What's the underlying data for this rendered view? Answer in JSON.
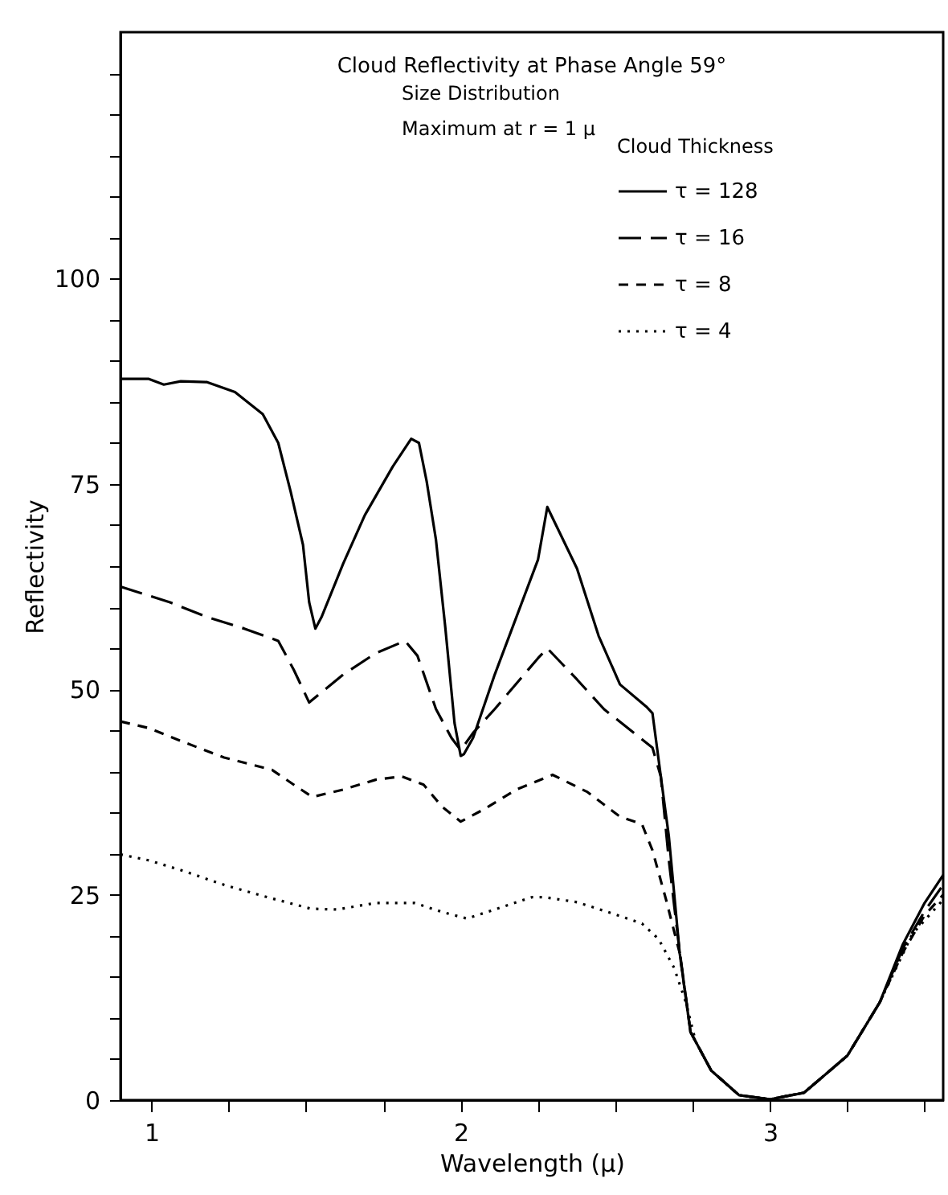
{
  "chart_data": {
    "type": "line",
    "title": "Cloud Reflectivity at Phase Angle 59°",
    "xlabel": "Wavelength (μ)",
    "ylabel": "Reflectivity",
    "legend_title": "Cloud Thickness",
    "annotations": [
      "Size Distribution",
      "Maximum at r = 1 μ"
    ],
    "xlim": [
      0.9,
      3.56
    ],
    "ylim": [
      0,
      130
    ],
    "xticks": [
      1,
      {
        "value": 1.25,
        "label": null
      },
      {
        "value": 1.5,
        "label": null
      },
      {
        "value": 1.75,
        "label": null
      },
      2,
      {
        "value": 2.25,
        "label": null
      },
      {
        "value": 2.5,
        "label": null
      },
      {
        "value": 2.75,
        "label": null
      },
      3,
      {
        "value": 3.25,
        "label": null
      },
      {
        "value": 3.5,
        "label": null
      }
    ],
    "yticks": [
      0,
      {
        "value": 5,
        "label": null
      },
      {
        "value": 10,
        "label": null
      },
      {
        "value": 15,
        "label": null
      },
      {
        "value": 20,
        "label": null
      },
      25,
      {
        "value": 30,
        "label": null
      },
      {
        "value": 35,
        "label": null
      },
      {
        "value": 40,
        "label": null
      },
      {
        "value": 45,
        "label": null
      },
      50,
      {
        "value": 55,
        "label": null
      },
      {
        "value": 60,
        "label": null
      },
      {
        "value": 65,
        "label": null
      },
      {
        "value": 70,
        "label": null
      },
      75,
      {
        "value": 80,
        "label": null
      },
      {
        "value": 85,
        "label": null
      },
      {
        "value": 90,
        "label": null
      },
      {
        "value": 95,
        "label": null
      },
      100,
      {
        "value": 105,
        "label": null
      },
      {
        "value": 110,
        "label": null
      },
      {
        "value": 115,
        "label": null
      },
      {
        "value": 120,
        "label": null
      },
      {
        "value": 125,
        "label": null
      }
    ],
    "grid": false,
    "legend": "top right",
    "marker": "none",
    "series": [
      {
        "name": "τ = 128",
        "color": "#000000",
        "line_style": "solid",
        "x": [
          0.9,
          0.99,
          1.04,
          1.095,
          1.18,
          1.27,
          1.36,
          1.41,
          1.45,
          1.49,
          1.51,
          1.53,
          1.55,
          1.62,
          1.69,
          1.78,
          1.84,
          1.865,
          1.89,
          1.92,
          1.95,
          1.98,
          2.0,
          2.01,
          2.04,
          2.11,
          2.18,
          2.25,
          2.28,
          2.376,
          2.446,
          2.515,
          2.6,
          2.62,
          2.647,
          2.673,
          2.708,
          2.743,
          2.81,
          2.9,
          3.0,
          3.11,
          3.25,
          3.355,
          3.43,
          3.5,
          3.56
        ],
        "values": [
          87.8,
          87.8,
          87.1,
          87.5,
          87.4,
          86.2,
          83.5,
          80,
          74.1,
          67.6,
          60.6,
          57.4,
          58.8,
          65.3,
          71.2,
          77.1,
          80.5,
          80,
          75.3,
          68.2,
          57.6,
          45.9,
          41.9,
          42.1,
          44.1,
          51.8,
          58.8,
          65.8,
          72.2,
          64.7,
          56.5,
          50.6,
          47.9,
          47.1,
          39.4,
          32.1,
          17.9,
          8.3,
          3.6,
          0.6,
          0.1,
          0.9,
          5.4,
          11.9,
          19,
          24,
          27.4
        ]
      },
      {
        "name": "τ = 16",
        "color": "#000000",
        "line_style": "longdash",
        "x": [
          0.9,
          1.06,
          1.18,
          1.3,
          1.41,
          1.46,
          1.51,
          1.62,
          1.725,
          1.82,
          1.86,
          1.92,
          1.97,
          2.0,
          2.04,
          2.11,
          2.25,
          2.28,
          2.376,
          2.463,
          2.57,
          2.62,
          2.647,
          2.673,
          2.705,
          2.743,
          2.81,
          2.9,
          3.0,
          3.11,
          3.25,
          3.355,
          3.43,
          3.5,
          3.56
        ],
        "values": [
          62.5,
          60.6,
          58.8,
          57.4,
          55.9,
          52.4,
          48.4,
          51.8,
          54.4,
          55.9,
          54.1,
          47.6,
          44.1,
          42.6,
          44.7,
          47.6,
          53.8,
          55,
          51.2,
          47.6,
          44.4,
          42.9,
          39.4,
          29.2,
          19,
          8.3,
          3.6,
          0.6,
          0.1,
          0.9,
          5.4,
          11.9,
          18.5,
          23,
          26.2
        ]
      },
      {
        "name": "τ = 8",
        "color": "#000000",
        "line_style": "dashed",
        "x": [
          0.9,
          0.99,
          1.11,
          1.235,
          1.39,
          1.46,
          1.52,
          1.62,
          1.725,
          1.81,
          1.88,
          1.94,
          2.0,
          2.075,
          2.18,
          2.297,
          2.41,
          2.515,
          2.586,
          2.62,
          2.664,
          2.708,
          2.743,
          2.81,
          2.9,
          3.0,
          3.11,
          3.25,
          3.355,
          3.43,
          3.5,
          3.56
        ],
        "values": [
          46.1,
          45.3,
          43.5,
          41.7,
          40.2,
          38.4,
          36.9,
          37.8,
          39,
          39.4,
          38.4,
          35.7,
          33.9,
          35.4,
          37.8,
          39.6,
          37.5,
          34.5,
          33.6,
          30.4,
          24.4,
          17.9,
          8.3,
          3.6,
          0.6,
          0.1,
          0.9,
          5.4,
          11.9,
          18,
          22.5,
          25
        ]
      },
      {
        "name": "τ = 4",
        "color": "#000000",
        "line_style": "dotted",
        "x": [
          0.9,
          0.99,
          1.095,
          1.235,
          1.375,
          1.515,
          1.6,
          1.725,
          1.85,
          1.94,
          2.02,
          2.11,
          2.23,
          2.27,
          2.376,
          2.5,
          2.586,
          2.64,
          2.69,
          2.728,
          2.76,
          2.81,
          2.9,
          3.0,
          3.11,
          3.25,
          3.355,
          3.46,
          3.56
        ],
        "values": [
          29.9,
          29.2,
          28,
          26.2,
          24.7,
          23.3,
          23.2,
          24,
          24,
          22.9,
          22.1,
          23.2,
          24.7,
          24.7,
          24.1,
          22.6,
          21.5,
          19.6,
          16.1,
          11.9,
          7.1,
          3.6,
          0.6,
          0.1,
          0.9,
          5.4,
          11.9,
          20.2,
          24.4
        ]
      }
    ]
  }
}
